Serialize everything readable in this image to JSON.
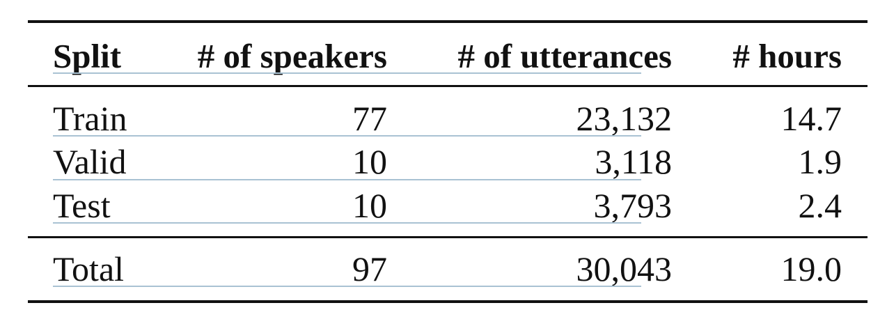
{
  "table": {
    "headers": [
      "Split",
      "# of speakers",
      "# of utterances",
      "# hours"
    ],
    "rows": [
      [
        "Train",
        "77",
        "23,132",
        "14.7"
      ],
      [
        "Valid",
        "10",
        "3,118",
        "1.9"
      ],
      [
        "Test",
        "10",
        "3,793",
        "2.4"
      ]
    ],
    "total": [
      "Total",
      "97",
      "30,043",
      "19.0"
    ]
  }
}
